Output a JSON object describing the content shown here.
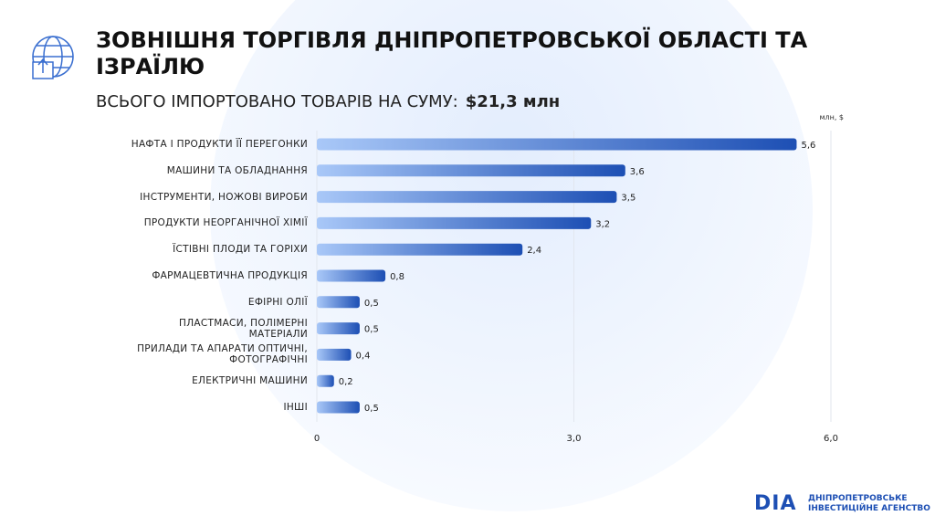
{
  "chart_data": {
    "type": "hbar",
    "title": "ЗОВНІШНЯ ТОРГІВЛЯ ДНІПРОПЕТРОВСЬКОЇ ОБЛАСТІ ТА ІЗРАЇЛЮ",
    "subtitle": "ВСЬОГО ІМПОРТОВАНО ТОВАРІВ НА СУМУ:",
    "total": "$21,3 млн",
    "axis_label": "млн, $",
    "categories": [
      "НАФТА І ПРОДУКТИ ЇЇ ПЕРЕГОНКИ",
      "МАШИНИ ТА ОБЛАДНАННЯ",
      "ІНСТРУМЕНТИ, НОЖОВІ ВИРОБИ",
      "ПРОДУКТИ НЕОРГАНІЧНОЇ ХІМІЇ",
      "ЇСТІВНІ ПЛОДИ ТА ГОРІХИ",
      "ФАРМАЦЕВТИЧНА ПРОДУКЦІЯ",
      "ЕФІРНІ ОЛІЇ",
      "ПЛАСТМАСИ, ПОЛІМЕРНІ\nМАТЕРІАЛИ",
      "ПРИЛАДИ ТА АПАРАТИ ОПТИЧНІ,\nФОТОГРАФІЧНІ",
      "ЕЛЕКТРИЧНІ МАШИНИ",
      "ІНШІ"
    ],
    "values": [
      5.6,
      3.6,
      3.5,
      3.2,
      2.4,
      0.8,
      0.5,
      0.5,
      0.4,
      0.2,
      0.5
    ],
    "value_labels": [
      "5,6",
      "3,6",
      "3,5",
      "3,2",
      "2,4",
      "0,8",
      "0,5",
      "0,5",
      "0,4",
      "0,2",
      "0,5"
    ],
    "color": [
      "#a9c8f8",
      "#1d4fb4"
    ],
    "xlim": [
      0,
      6
    ],
    "xticks": [
      0,
      {
        "value": 3,
        "label": "3,0"
      },
      {
        "value": 6,
        "label": "6,0"
      }
    ],
    "grid": true
  },
  "logo": {
    "mark": "DIA",
    "text": "ДНІПРОПЕТРОВСЬКЕ\nІНВЕСТИЦІЙНЕ АГЕНСТВО"
  }
}
